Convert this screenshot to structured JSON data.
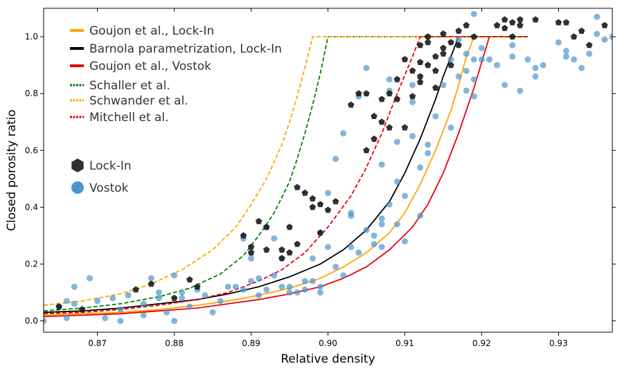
{
  "chart_data": {
    "type": "scatter",
    "xlabel": "Relative density",
    "ylabel": "Closed porosity ratio",
    "xlim": [
      0.863,
      0.937
    ],
    "ylim": [
      -0.04,
      1.1
    ],
    "xticks": [
      0.87,
      0.88,
      0.89,
      0.9,
      0.91,
      0.92,
      0.93
    ],
    "xtick_labels": [
      "0.87",
      "0.88",
      "0.89",
      "0.90",
      "0.91",
      "0.92",
      "0.93"
    ],
    "yticks": [
      0.0,
      0.2,
      0.4,
      0.6,
      0.8,
      1.0
    ],
    "ytick_labels": [
      "0.0",
      "0.2",
      "0.4",
      "0.6",
      "0.8",
      "1.0"
    ],
    "grid": false,
    "legend_position": "top-left",
    "curves": [
      {
        "name": "Goujon et al., Lock-In",
        "style": "solid",
        "color": "#ffa500",
        "x": [
          0.863,
          0.868,
          0.873,
          0.878,
          0.883,
          0.887,
          0.891,
          0.895,
          0.899,
          0.902,
          0.905,
          0.908,
          0.91,
          0.912,
          0.914,
          0.916,
          0.917,
          0.918,
          0.919,
          0.926
        ],
        "y": [
          0.02,
          0.025,
          0.03,
          0.04,
          0.055,
          0.07,
          0.09,
          0.115,
          0.15,
          0.19,
          0.24,
          0.31,
          0.38,
          0.48,
          0.6,
          0.74,
          0.83,
          0.93,
          1.0,
          1.0
        ]
      },
      {
        "name": "Barnola parametrization, Lock-In",
        "style": "solid",
        "color": "#000000",
        "x": [
          0.863,
          0.868,
          0.873,
          0.878,
          0.883,
          0.887,
          0.891,
          0.895,
          0.899,
          0.902,
          0.905,
          0.908,
          0.91,
          0.912,
          0.914,
          0.915,
          0.916,
          0.917,
          0.926
        ],
        "y": [
          0.03,
          0.035,
          0.045,
          0.06,
          0.075,
          0.095,
          0.12,
          0.155,
          0.2,
          0.25,
          0.32,
          0.42,
          0.52,
          0.64,
          0.78,
          0.86,
          0.93,
          1.0,
          1.0
        ]
      },
      {
        "name": "Goujon et al., Vostok",
        "style": "solid",
        "color": "#e8000b",
        "x": [
          0.863,
          0.868,
          0.873,
          0.878,
          0.883,
          0.887,
          0.891,
          0.895,
          0.899,
          0.902,
          0.905,
          0.908,
          0.911,
          0.913,
          0.915,
          0.917,
          0.919,
          0.92,
          0.921,
          0.926
        ],
        "y": [
          0.015,
          0.02,
          0.025,
          0.035,
          0.045,
          0.06,
          0.075,
          0.095,
          0.12,
          0.15,
          0.19,
          0.25,
          0.33,
          0.41,
          0.52,
          0.66,
          0.82,
          0.91,
          1.0,
          1.0
        ]
      },
      {
        "name": "Schaller et al.",
        "style": "dashed",
        "color": "#008000",
        "x": [
          0.863,
          0.868,
          0.873,
          0.878,
          0.882,
          0.886,
          0.889,
          0.891,
          0.893,
          0.895,
          0.896,
          0.897,
          0.898,
          0.899,
          0.9,
          0.926
        ],
        "y": [
          0.035,
          0.045,
          0.06,
          0.085,
          0.115,
          0.165,
          0.23,
          0.3,
          0.38,
          0.49,
          0.57,
          0.66,
          0.76,
          0.87,
          1.0,
          1.0
        ]
      },
      {
        "name": "Schwander et al.",
        "style": "dashed",
        "color": "#ffa500",
        "x": [
          0.863,
          0.868,
          0.873,
          0.877,
          0.881,
          0.885,
          0.888,
          0.89,
          0.892,
          0.894,
          0.895,
          0.896,
          0.897,
          0.898,
          0.926
        ],
        "y": [
          0.055,
          0.07,
          0.095,
          0.13,
          0.18,
          0.25,
          0.33,
          0.41,
          0.5,
          0.62,
          0.7,
          0.79,
          0.89,
          1.0,
          1.0
        ]
      },
      {
        "name": "Mitchell et al.",
        "style": "dashed",
        "color": "#e8000b",
        "x": [
          0.863,
          0.868,
          0.873,
          0.878,
          0.883,
          0.887,
          0.891,
          0.894,
          0.897,
          0.9,
          0.903,
          0.905,
          0.907,
          0.909,
          0.911,
          0.912,
          0.926
        ],
        "y": [
          0.025,
          0.03,
          0.04,
          0.055,
          0.075,
          0.1,
          0.14,
          0.18,
          0.24,
          0.33,
          0.44,
          0.54,
          0.66,
          0.8,
          0.93,
          1.0,
          1.0
        ]
      }
    ],
    "series": [
      {
        "name": "Lock-In",
        "marker": "pentagon",
        "color": "#1a1a1a",
        "points": [
          [
            0.865,
            0.05
          ],
          [
            0.868,
            0.04
          ],
          [
            0.875,
            0.11
          ],
          [
            0.877,
            0.13
          ],
          [
            0.88,
            0.08
          ],
          [
            0.882,
            0.145
          ],
          [
            0.883,
            0.12
          ],
          [
            0.889,
            0.3
          ],
          [
            0.89,
            0.26
          ],
          [
            0.89,
            0.24
          ],
          [
            0.891,
            0.35
          ],
          [
            0.892,
            0.33
          ],
          [
            0.892,
            0.25
          ],
          [
            0.894,
            0.22
          ],
          [
            0.894,
            0.25
          ],
          [
            0.895,
            0.33
          ],
          [
            0.895,
            0.24
          ],
          [
            0.896,
            0.27
          ],
          [
            0.896,
            0.47
          ],
          [
            0.897,
            0.45
          ],
          [
            0.898,
            0.4
          ],
          [
            0.898,
            0.43
          ],
          [
            0.899,
            0.41
          ],
          [
            0.899,
            0.31
          ],
          [
            0.9,
            0.39
          ],
          [
            0.901,
            0.42
          ],
          [
            0.903,
            0.76
          ],
          [
            0.904,
            0.8
          ],
          [
            0.905,
            0.6
          ],
          [
            0.905,
            0.8
          ],
          [
            0.906,
            0.64
          ],
          [
            0.906,
            0.72
          ],
          [
            0.907,
            0.7
          ],
          [
            0.907,
            0.78
          ],
          [
            0.908,
            0.68
          ],
          [
            0.908,
            0.8
          ],
          [
            0.909,
            0.78
          ],
          [
            0.909,
            0.85
          ],
          [
            0.91,
            0.92
          ],
          [
            0.91,
            0.68
          ],
          [
            0.911,
            0.88
          ],
          [
            0.911,
            0.79
          ],
          [
            0.912,
            0.97
          ],
          [
            0.912,
            0.91
          ],
          [
            0.912,
            0.86
          ],
          [
            0.912,
            0.84
          ],
          [
            0.913,
            0.98
          ],
          [
            0.913,
            1.0
          ],
          [
            0.913,
            0.9
          ],
          [
            0.914,
            0.93
          ],
          [
            0.914,
            0.88
          ],
          [
            0.914,
            0.82
          ],
          [
            0.915,
            0.96
          ],
          [
            0.915,
            0.94
          ],
          [
            0.915,
            1.01
          ],
          [
            0.916,
            0.98
          ],
          [
            0.916,
            0.9
          ],
          [
            0.917,
            1.02
          ],
          [
            0.917,
            0.97
          ],
          [
            0.918,
            1.04
          ],
          [
            0.919,
            1.0
          ],
          [
            0.922,
            1.04
          ],
          [
            0.923,
            1.03
          ],
          [
            0.923,
            1.06
          ],
          [
            0.924,
            1.05
          ],
          [
            0.924,
            1.0
          ],
          [
            0.925,
            1.06
          ],
          [
            0.925,
            1.04
          ],
          [
            0.927,
            1.06
          ],
          [
            0.93,
            1.05
          ],
          [
            0.931,
            1.05
          ],
          [
            0.932,
            1.0
          ],
          [
            0.933,
            1.02
          ],
          [
            0.934,
            0.97
          ],
          [
            0.936,
            1.04
          ]
        ]
      },
      {
        "name": "Vostok",
        "marker": "circle",
        "color": "#4f95cc",
        "points": [
          [
            0.863,
            0.0
          ],
          [
            0.865,
            0.05
          ],
          [
            0.866,
            0.07
          ],
          [
            0.866,
            0.01
          ],
          [
            0.867,
            0.12
          ],
          [
            0.867,
            0.06
          ],
          [
            0.868,
            0.04
          ],
          [
            0.869,
            0.15
          ],
          [
            0.87,
            0.07
          ],
          [
            0.871,
            0.01
          ],
          [
            0.872,
            0.08
          ],
          [
            0.873,
            0.04
          ],
          [
            0.873,
            0.0
          ],
          [
            0.874,
            0.09
          ],
          [
            0.876,
            0.02
          ],
          [
            0.876,
            0.06
          ],
          [
            0.877,
            0.15
          ],
          [
            0.878,
            0.1
          ],
          [
            0.878,
            0.08
          ],
          [
            0.879,
            0.03
          ],
          [
            0.88,
            0.16
          ],
          [
            0.88,
            0.0
          ],
          [
            0.881,
            0.1
          ],
          [
            0.881,
            0.08
          ],
          [
            0.882,
            0.05
          ],
          [
            0.883,
            0.11
          ],
          [
            0.884,
            0.09
          ],
          [
            0.885,
            0.03
          ],
          [
            0.886,
            0.07
          ],
          [
            0.887,
            0.12
          ],
          [
            0.888,
            0.12
          ],
          [
            0.889,
            0.11
          ],
          [
            0.889,
            0.29
          ],
          [
            0.89,
            0.22
          ],
          [
            0.89,
            0.14
          ],
          [
            0.891,
            0.09
          ],
          [
            0.891,
            0.15
          ],
          [
            0.892,
            0.11
          ],
          [
            0.892,
            0.33
          ],
          [
            0.893,
            0.29
          ],
          [
            0.893,
            0.16
          ],
          [
            0.894,
            0.22
          ],
          [
            0.894,
            0.12
          ],
          [
            0.895,
            0.1
          ],
          [
            0.895,
            0.12
          ],
          [
            0.896,
            0.1
          ],
          [
            0.897,
            0.14
          ],
          [
            0.897,
            0.11
          ],
          [
            0.898,
            0.22
          ],
          [
            0.898,
            0.14
          ],
          [
            0.899,
            0.31
          ],
          [
            0.899,
            0.12
          ],
          [
            0.899,
            0.1
          ],
          [
            0.9,
            0.45
          ],
          [
            0.9,
            0.26
          ],
          [
            0.901,
            0.57
          ],
          [
            0.901,
            0.19
          ],
          [
            0.902,
            0.16
          ],
          [
            0.902,
            0.66
          ],
          [
            0.903,
            0.37
          ],
          [
            0.903,
            0.38
          ],
          [
            0.903,
            0.26
          ],
          [
            0.904,
            0.24
          ],
          [
            0.904,
            0.79
          ],
          [
            0.905,
            0.89
          ],
          [
            0.905,
            0.32
          ],
          [
            0.906,
            0.27
          ],
          [
            0.906,
            0.3
          ],
          [
            0.907,
            0.36
          ],
          [
            0.907,
            0.34
          ],
          [
            0.907,
            0.55
          ],
          [
            0.907,
            0.26
          ],
          [
            0.908,
            0.85
          ],
          [
            0.908,
            0.81
          ],
          [
            0.908,
            0.41
          ],
          [
            0.909,
            0.34
          ],
          [
            0.909,
            0.49
          ],
          [
            0.909,
            0.63
          ],
          [
            0.91,
            0.44
          ],
          [
            0.91,
            0.28
          ],
          [
            0.911,
            0.83
          ],
          [
            0.911,
            0.65
          ],
          [
            0.911,
            0.77
          ],
          [
            0.912,
            0.54
          ],
          [
            0.912,
            0.37
          ],
          [
            0.913,
            0.62
          ],
          [
            0.913,
            0.59
          ],
          [
            0.914,
            0.72
          ],
          [
            0.915,
            0.83
          ],
          [
            0.916,
            0.68
          ],
          [
            0.917,
            0.86
          ],
          [
            0.918,
            0.81
          ],
          [
            0.918,
            0.94
          ],
          [
            0.918,
            0.88
          ],
          [
            0.919,
            0.85
          ],
          [
            0.919,
            0.79
          ],
          [
            0.919,
            0.92
          ],
          [
            0.92,
            0.96
          ],
          [
            0.92,
            0.92
          ],
          [
            0.921,
            0.92
          ],
          [
            0.922,
            0.9
          ],
          [
            0.923,
            0.83
          ],
          [
            0.924,
            0.97
          ],
          [
            0.924,
            0.93
          ],
          [
            0.925,
            0.81
          ],
          [
            0.926,
            0.92
          ],
          [
            0.927,
            0.89
          ],
          [
            0.927,
            0.86
          ],
          [
            0.928,
            0.9
          ],
          [
            0.93,
            0.98
          ],
          [
            0.931,
            0.95
          ],
          [
            0.931,
            0.93
          ],
          [
            0.932,
            0.92
          ],
          [
            0.933,
            0.89
          ],
          [
            0.934,
            0.94
          ],
          [
            0.935,
            1.07
          ],
          [
            0.935,
            1.01
          ],
          [
            0.936,
            0.99
          ],
          [
            0.937,
            1.0
          ],
          [
            0.919,
            1.08
          ],
          [
            0.917,
            0.99
          ],
          [
            0.916,
            0.92
          ]
        ]
      }
    ]
  }
}
